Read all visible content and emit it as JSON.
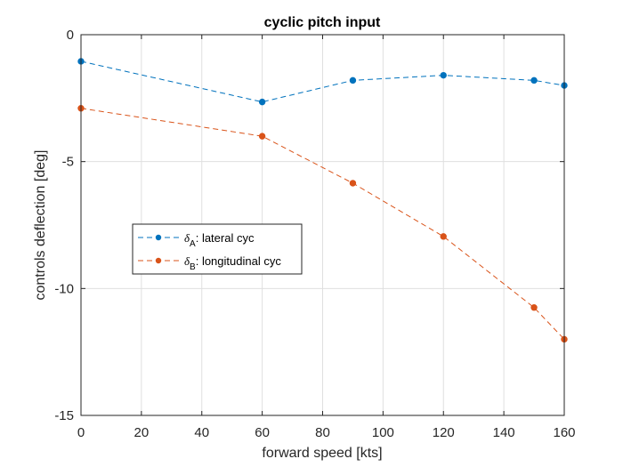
{
  "chart_data": {
    "type": "line",
    "title": "cyclic pitch input",
    "xlabel": "forward speed [kts]",
    "ylabel": "controls deflection [deg]",
    "xlim": [
      0,
      160
    ],
    "ylim": [
      -15,
      0
    ],
    "xticks": [
      0,
      20,
      40,
      60,
      80,
      100,
      120,
      140,
      160
    ],
    "yticks": [
      0,
      -5,
      -10,
      -15
    ],
    "grid": true,
    "legend_position": "center-left",
    "x": [
      0,
      60,
      90,
      120,
      150,
      160
    ],
    "series": [
      {
        "name_symbol": "δ",
        "name_subscript": "A",
        "name_suffix": ": lateral cyc",
        "color": "#0072BD",
        "line_style": "dashed",
        "marker": "circle",
        "values": [
          -1.05,
          -2.65,
          -1.8,
          -1.6,
          -1.8,
          -2.0
        ]
      },
      {
        "name_symbol": "δ",
        "name_subscript": "B",
        "name_suffix": ": longitudinal cyc",
        "color": "#D95319",
        "line_style": "dashed",
        "marker": "circle",
        "values": [
          -2.9,
          -4.0,
          -5.85,
          -7.95,
          -10.75,
          -12.0
        ]
      }
    ]
  }
}
